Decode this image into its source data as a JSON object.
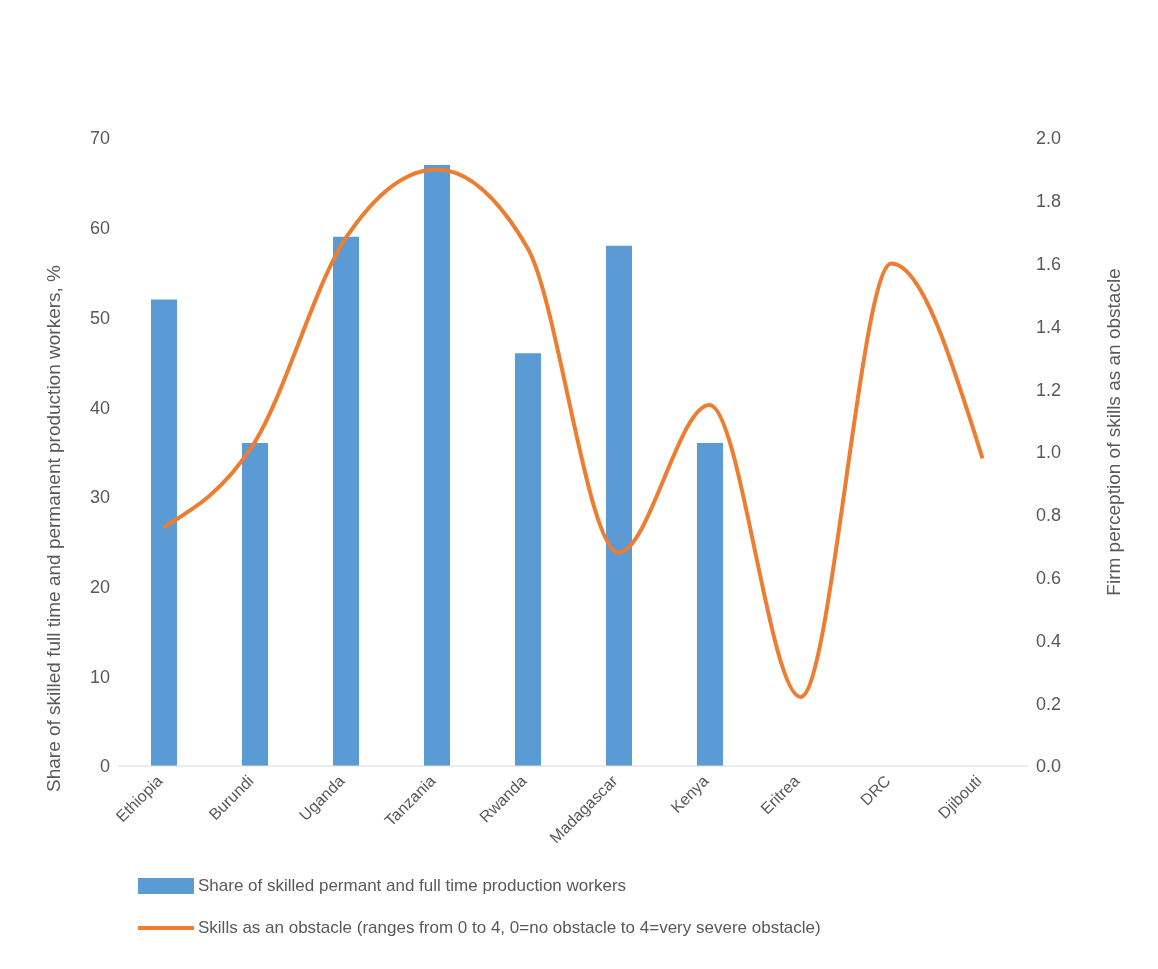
{
  "chart_data": {
    "type": "bar",
    "categories": [
      "Ethiopia",
      "Burundi",
      "Uganda",
      "Tanzania",
      "Rwanda",
      "Madagascar",
      "Kenya",
      "Eritrea",
      "DRC",
      "Djibouti"
    ],
    "ylabel": "Share of skilled full time and permanent production workers, %",
    "y2label": "Firm perception of skills as an obstacle",
    "ylim": [
      0,
      70
    ],
    "yticks": [
      0,
      10,
      20,
      30,
      40,
      50,
      60,
      70
    ],
    "y2lim": [
      0,
      2
    ],
    "y2ticks": [
      {
        "value": 0,
        "label": "0.0"
      },
      {
        "value": 0.2,
        "label": "0.2"
      },
      {
        "value": 0.4,
        "label": "0.4"
      },
      {
        "value": 0.6,
        "label": "0.6"
      },
      {
        "value": 0.8,
        "label": "0.8"
      },
      {
        "value": 1,
        "label": "1.0"
      },
      {
        "value": 1.2,
        "label": "1.2"
      },
      {
        "value": 1.4,
        "label": "1.4"
      },
      {
        "value": 1.6,
        "label": "1.6"
      },
      {
        "value": 1.8,
        "label": "1.8"
      },
      {
        "value": 2,
        "label": "2.0"
      }
    ],
    "series": [
      {
        "name": "Share of skilled permant and full time production workers",
        "color": "#5b9bd5",
        "values": [
          52,
          36,
          59,
          67,
          46,
          58,
          36,
          null,
          null,
          null
        ]
      },
      {
        "name": "Skills as an obstacle (ranges from 0 to 4, 0=no obstacle to 4=very severe obstacle)",
        "type": "line",
        "axis": "y2",
        "color": "#ed7d31",
        "values": [
          0.76,
          1.03,
          1.68,
          1.9,
          1.65,
          0.68,
          1.15,
          0.22,
          1.6,
          0.98
        ]
      }
    ],
    "grid": false,
    "legend": "bottom",
    "marker": "none",
    "line_style": "solid"
  }
}
